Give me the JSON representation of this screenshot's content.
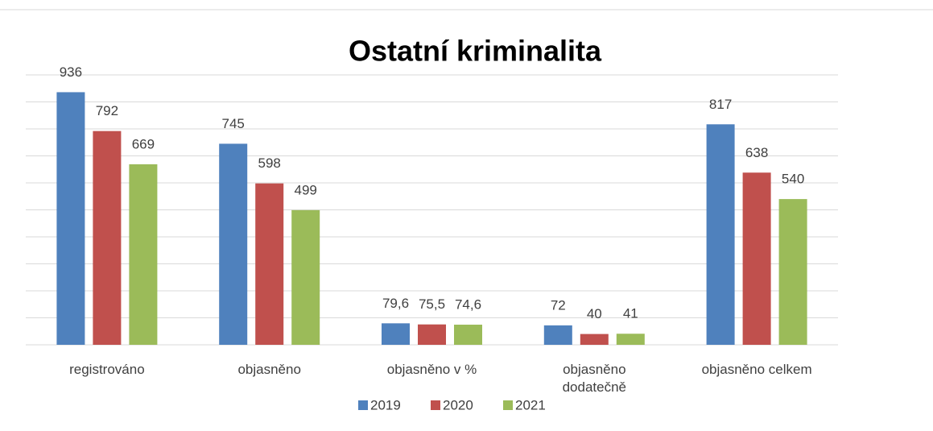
{
  "chart_data": {
    "type": "bar",
    "title": "Ostatní kriminalita",
    "categories": [
      "registrováno",
      "objasněno",
      "objasněno v %",
      "objasněno dodatečně",
      "objasněno celkem"
    ],
    "series": [
      {
        "name": "2019",
        "color": "#4f81bd",
        "values": [
          936,
          745,
          79.6,
          72,
          817
        ],
        "value_labels": [
          "936",
          "745",
          "79,6",
          "72",
          "817"
        ]
      },
      {
        "name": "2020",
        "color": "#c0504d",
        "values": [
          792,
          598,
          75.5,
          40,
          638
        ],
        "value_labels": [
          "792",
          "598",
          "75,5",
          "40",
          "638"
        ]
      },
      {
        "name": "2021",
        "color": "#9bbb59",
        "values": [
          669,
          499,
          74.6,
          41,
          540
        ],
        "value_labels": [
          "669",
          "499",
          "74,6",
          "41",
          "540"
        ]
      }
    ],
    "ylim": [
      0,
      1000
    ],
    "yticks": [
      0,
      100,
      200,
      300,
      400,
      500,
      600,
      700,
      800,
      900,
      1000
    ],
    "grid": true,
    "legend": "bottom"
  }
}
